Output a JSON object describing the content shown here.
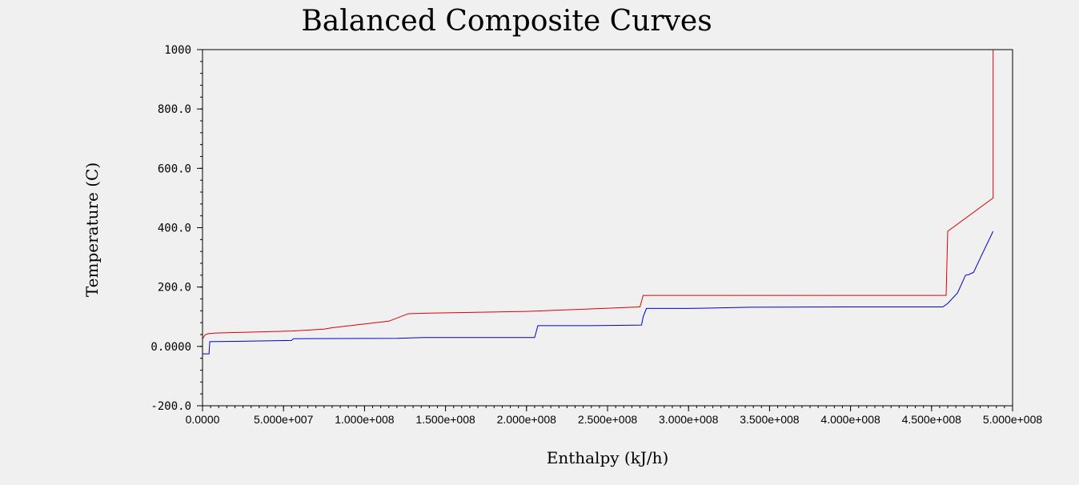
{
  "chart_data": {
    "type": "line",
    "title": "Balanced Composite Curves",
    "xlabel": "Enthalpy (kJ/h)",
    "ylabel": "Temperature (C)",
    "xlim": [
      0,
      500000000
    ],
    "ylim": [
      -200,
      1000
    ],
    "x_ticks": [
      0,
      50000000,
      100000000,
      150000000,
      200000000,
      250000000,
      300000000,
      350000000,
      400000000,
      450000000,
      500000000
    ],
    "x_tick_labels": [
      "0.0000",
      "5.000e+007",
      "1.000e+008",
      "1.500e+008",
      "2.000e+008",
      "2.500e+008",
      "3.000e+008",
      "3.500e+008",
      "4.000e+008",
      "4.500e+008",
      "5.000e+008"
    ],
    "y_ticks": [
      -200,
      0,
      200,
      400,
      600,
      800,
      1000
    ],
    "y_tick_labels": [
      "-200.0",
      "0.0000",
      "200.0",
      "400.0",
      "600.0",
      "800.0",
      "1000"
    ],
    "grid": false,
    "series": [
      {
        "color": "#dd0000",
        "x": [
          0,
          1500000,
          3500000,
          8000000,
          55000000,
          75000000,
          80000000,
          115000000,
          127000000,
          140000000,
          200000000,
          270000000,
          272000000,
          350000000,
          430000000,
          459000000,
          460000000,
          488000000,
          488000000
        ],
        "y": [
          25,
          38,
          43,
          45,
          52,
          58,
          63,
          85,
          110,
          112,
          118,
          133,
          172,
          172,
          172,
          172,
          388,
          500,
          1000
        ]
      },
      {
        "color": "#0000cc",
        "x": [
          0,
          4000000,
          4500000,
          20000000,
          55000000,
          56000000,
          120000000,
          136000000,
          205000000,
          207000000,
          240000000,
          271000000,
          272000000,
          274000000,
          300000000,
          338000000,
          400000000,
          457000000,
          460000000,
          466000000,
          471000000,
          473000000,
          476000000,
          482000000,
          488000000
        ],
        "y": [
          -25,
          -25,
          16,
          17,
          20,
          26,
          27,
          30,
          30,
          70,
          70,
          72,
          100,
          128,
          128,
          132,
          133,
          133,
          145,
          180,
          240,
          242,
          250,
          320,
          388
        ]
      }
    ]
  }
}
